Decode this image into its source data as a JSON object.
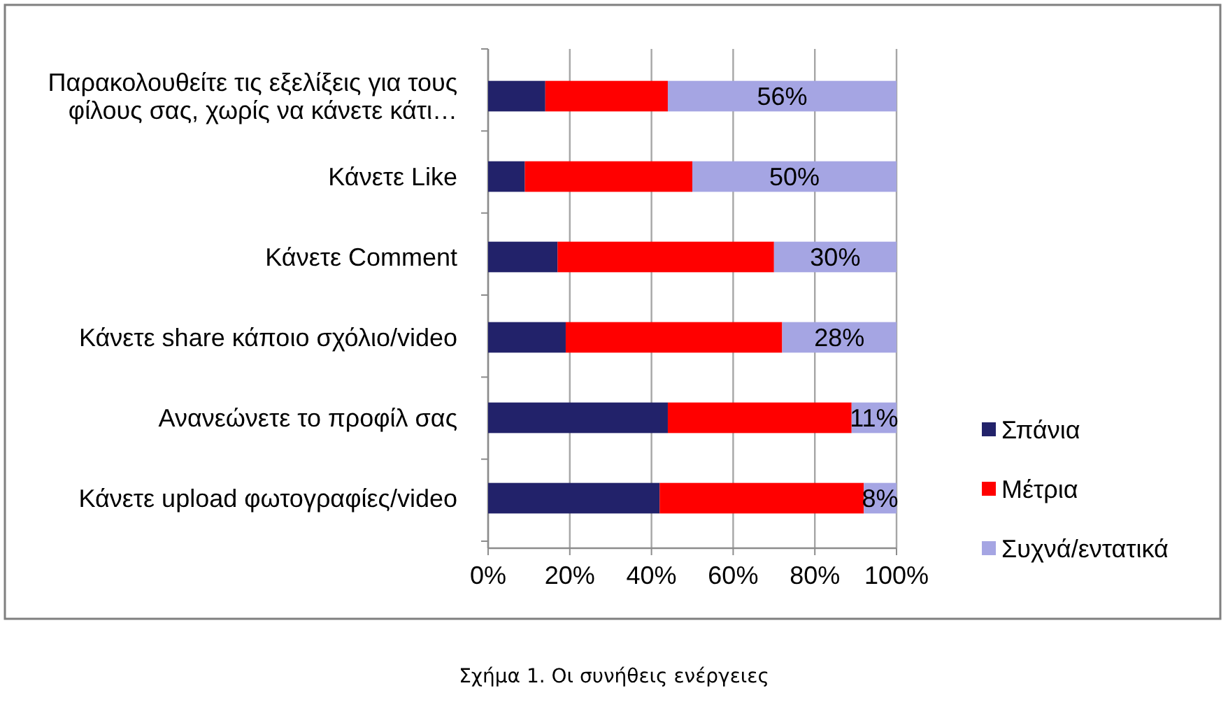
{
  "chart_data": {
    "type": "bar",
    "orientation": "horizontal",
    "stacked": true,
    "categories": [
      "Παρακολουθείτε τις εξελίξεις για τους φίλους σας, χωρίς να κάνετε κάτι…",
      "Κάνετε Like",
      "Κάνετε Comment",
      "Κάνετε share κάποιο σχόλιο/video",
      "Ανανεώνετε το προφίλ σας",
      "Κάνετε upload φωτογραφίες/video"
    ],
    "series": [
      {
        "name": "Σπάνια",
        "color": "#22226a",
        "values": [
          14,
          9,
          17,
          19,
          44,
          42
        ]
      },
      {
        "name": "Μέτρια",
        "color": "#ff0000",
        "values": [
          30,
          41,
          53,
          53,
          45,
          50
        ]
      },
      {
        "name": "Συχνά/εντατικά",
        "color": "#a5a5e3",
        "values": [
          56,
          50,
          30,
          28,
          11,
          8
        ],
        "value_labels": [
          "56%",
          "50%",
          "30%",
          "28%",
          "11%",
          "8%"
        ]
      }
    ],
    "xlim": [
      0,
      100
    ],
    "xticks": [
      {
        "value": 0,
        "label": "0%"
      },
      {
        "value": 20,
        "label": "20%"
      },
      {
        "value": 40,
        "label": "40%"
      },
      {
        "value": 60,
        "label": "60%"
      },
      {
        "value": 80,
        "label": "80%"
      },
      {
        "value": 100,
        "label": "100%"
      }
    ],
    "grid": "x",
    "legend": "right",
    "annotations": [
      "Σχήμα 1. Οι συνήθεις ενέργειες"
    ]
  }
}
